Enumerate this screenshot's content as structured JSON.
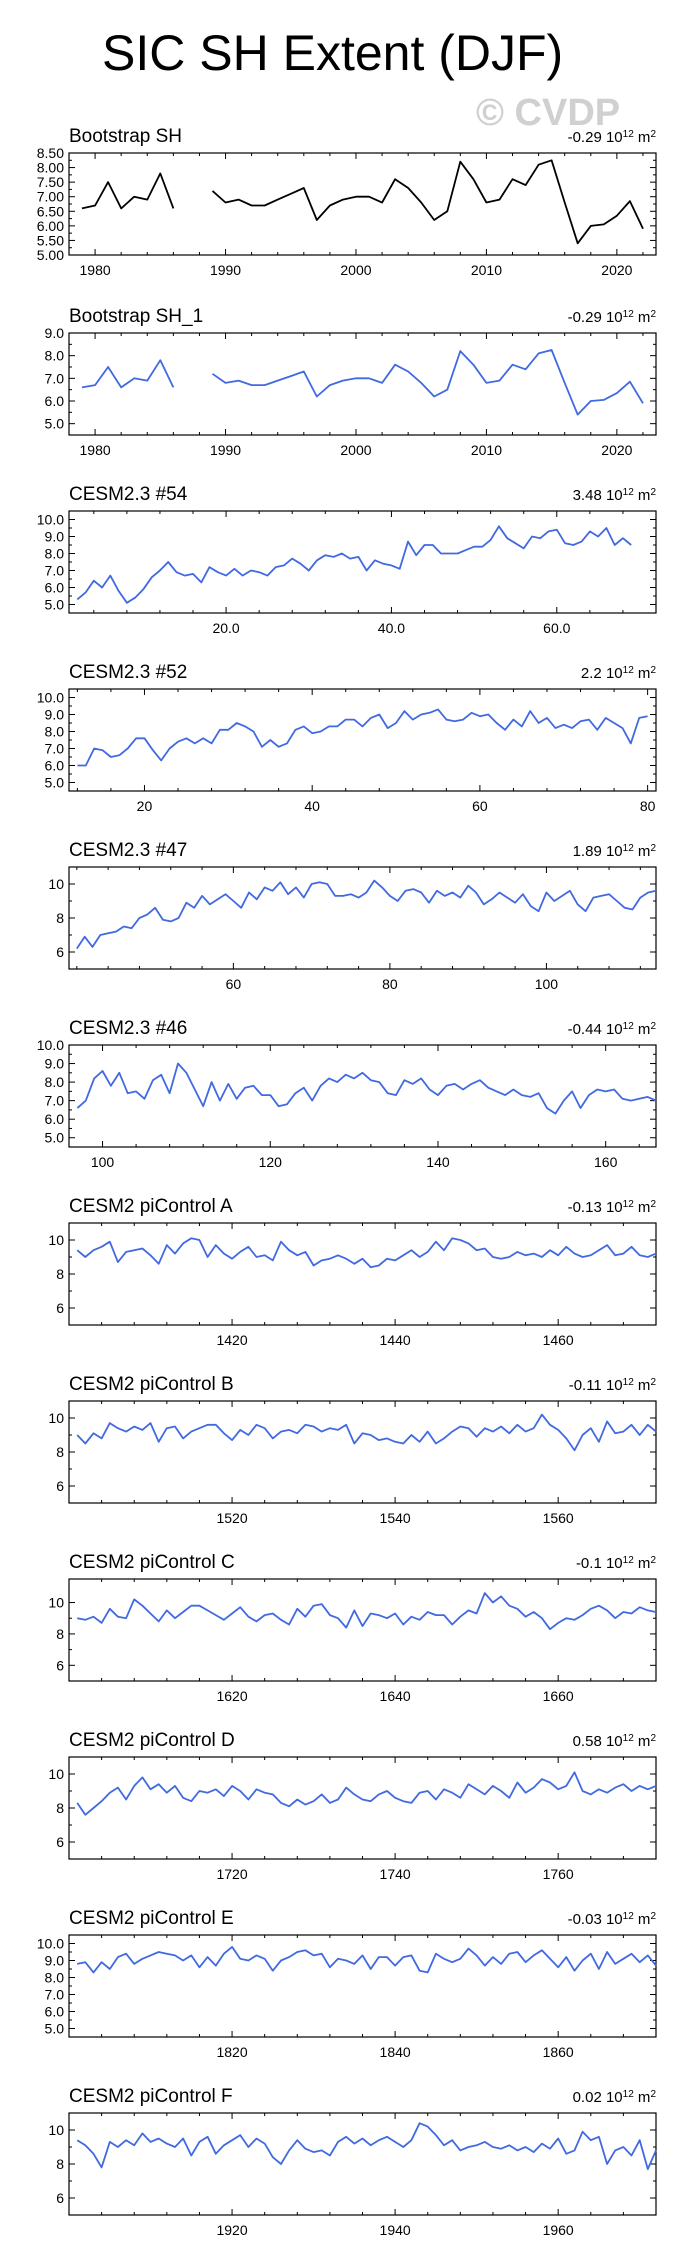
{
  "page": {
    "title": "SIC SH Extent (DJF)",
    "watermark": "© CVDP",
    "trend_unit_base": "10",
    "trend_unit_exp": "12",
    "trend_unit_suffix": "m"
  },
  "colors": {
    "obs_line": "#000000",
    "model_line": "#4169e1",
    "axis": "#000000"
  },
  "chart_data": [
    {
      "type": "line",
      "title": "Bootstrap SH",
      "trend": "-0.29",
      "xlim": [
        1978,
        2023
      ],
      "ylim": [
        5.0,
        8.5
      ],
      "yticks": [
        5.0,
        5.5,
        6.0,
        6.5,
        7.0,
        7.5,
        8.0,
        8.5
      ],
      "yticklabels": [
        "5.00",
        "5.50",
        "6.00",
        "6.50",
        "7.00",
        "7.50",
        "8.00",
        "8.50"
      ],
      "xticks": [
        1980,
        1990,
        2000,
        2010,
        2020
      ],
      "xticklabels": [
        "1980",
        "1990",
        "2000",
        "2010",
        "2020"
      ],
      "line_color": "#000000",
      "x": [
        1979,
        1980,
        1981,
        1982,
        1983,
        1984,
        1985,
        1986,
        1987,
        1988,
        1989,
        1990,
        1991,
        1992,
        1993,
        1994,
        1995,
        1996,
        1997,
        1998,
        1999,
        2000,
        2001,
        2002,
        2003,
        2004,
        2005,
        2006,
        2007,
        2008,
        2009,
        2010,
        2011,
        2012,
        2013,
        2014,
        2015,
        2016,
        2017,
        2018,
        2019,
        2020,
        2021,
        2022
      ],
      "values": [
        6.6,
        6.7,
        7.5,
        6.6,
        7.0,
        6.9,
        7.8,
        6.6,
        null,
        null,
        7.2,
        6.8,
        6.9,
        6.7,
        6.7,
        6.9,
        7.1,
        7.3,
        6.2,
        6.7,
        6.9,
        7.0,
        7.0,
        6.8,
        7.6,
        7.3,
        6.8,
        6.2,
        6.5,
        8.2,
        7.6,
        6.8,
        6.9,
        7.6,
        7.4,
        8.1,
        8.25,
        6.8,
        5.4,
        6.0,
        6.05,
        6.35,
        6.85,
        5.9
      ]
    },
    {
      "type": "line",
      "title": "Bootstrap SH_1",
      "trend": "-0.29",
      "xlim": [
        1978,
        2023
      ],
      "ylim": [
        4.5,
        9.0
      ],
      "yticks": [
        5.0,
        6.0,
        7.0,
        8.0,
        9.0
      ],
      "yticklabels": [
        "5.0",
        "6.0",
        "7.0",
        "8.0",
        "9.0"
      ],
      "xticks": [
        1980,
        1990,
        2000,
        2010,
        2020
      ],
      "xticklabels": [
        "1980",
        "1990",
        "2000",
        "2010",
        "2020"
      ],
      "line_color": "#4169e1",
      "x": [
        1979,
        1980,
        1981,
        1982,
        1983,
        1984,
        1985,
        1986,
        1987,
        1988,
        1989,
        1990,
        1991,
        1992,
        1993,
        1994,
        1995,
        1996,
        1997,
        1998,
        1999,
        2000,
        2001,
        2002,
        2003,
        2004,
        2005,
        2006,
        2007,
        2008,
        2009,
        2010,
        2011,
        2012,
        2013,
        2014,
        2015,
        2016,
        2017,
        2018,
        2019,
        2020,
        2021,
        2022
      ],
      "values": [
        6.6,
        6.7,
        7.5,
        6.6,
        7.0,
        6.9,
        7.8,
        6.6,
        null,
        null,
        7.2,
        6.8,
        6.9,
        6.7,
        6.7,
        6.9,
        7.1,
        7.3,
        6.2,
        6.7,
        6.9,
        7.0,
        7.0,
        6.8,
        7.6,
        7.3,
        6.8,
        6.2,
        6.5,
        8.2,
        7.6,
        6.8,
        6.9,
        7.6,
        7.4,
        8.1,
        8.25,
        6.8,
        5.4,
        6.0,
        6.05,
        6.35,
        6.85,
        5.9
      ]
    },
    {
      "type": "line",
      "title": "CESM2.3 #54",
      "trend": "3.48",
      "xlim": [
        1,
        72
      ],
      "ylim": [
        4.5,
        10.5
      ],
      "yticks": [
        5.0,
        6.0,
        7.0,
        8.0,
        9.0,
        10.0
      ],
      "yticklabels": [
        "5.0",
        "6.0",
        "7.0",
        "8.0",
        "9.0",
        "10.0"
      ],
      "xticks": [
        20,
        40,
        60
      ],
      "xticklabels": [
        "20.0",
        "40.0",
        "60.0"
      ],
      "line_color": "#4169e1",
      "x_start": 2,
      "values": [
        5.3,
        5.7,
        6.4,
        6.0,
        6.7,
        5.8,
        5.1,
        5.4,
        5.9,
        6.6,
        7.0,
        7.5,
        6.9,
        6.7,
        6.8,
        6.3,
        7.2,
        6.9,
        6.7,
        7.1,
        6.7,
        7.0,
        6.9,
        6.7,
        7.2,
        7.3,
        7.7,
        7.4,
        7.0,
        7.6,
        7.9,
        7.8,
        8.0,
        7.7,
        7.8,
        7.0,
        7.6,
        7.4,
        7.3,
        7.1,
        8.7,
        7.9,
        8.5,
        8.5,
        8.0,
        8.0,
        8.0,
        8.2,
        8.4,
        8.4,
        8.8,
        9.6,
        8.9,
        8.6,
        8.3,
        9.0,
        8.9,
        9.3,
        9.4,
        8.6,
        8.5,
        8.7,
        9.3,
        9.0,
        9.5,
        8.5,
        8.9,
        8.5
      ]
    },
    {
      "type": "line",
      "title": "CESM2.3 #52",
      "trend": "2.2",
      "xlim": [
        11,
        81
      ],
      "ylim": [
        4.5,
        10.5
      ],
      "yticks": [
        5.0,
        6.0,
        7.0,
        8.0,
        9.0,
        10.0
      ],
      "yticklabels": [
        "5.0",
        "6.0",
        "7.0",
        "8.0",
        "9.0",
        "10.0"
      ],
      "xticks": [
        20,
        40,
        60,
        80
      ],
      "xticklabels": [
        "20",
        "40",
        "60",
        "80"
      ],
      "line_color": "#4169e1",
      "x_start": 12,
      "values": [
        6.0,
        6.0,
        7.0,
        6.9,
        6.5,
        6.6,
        7.0,
        7.6,
        7.6,
        6.9,
        6.3,
        7.0,
        7.4,
        7.6,
        7.3,
        7.6,
        7.3,
        8.1,
        8.1,
        8.5,
        8.3,
        8.0,
        7.1,
        7.5,
        7.1,
        7.3,
        8.1,
        8.3,
        7.9,
        8.0,
        8.3,
        8.3,
        8.7,
        8.7,
        8.3,
        8.8,
        9.0,
        8.2,
        8.5,
        9.2,
        8.7,
        9.0,
        9.1,
        9.3,
        8.7,
        8.6,
        8.7,
        9.1,
        8.9,
        9.0,
        8.5,
        8.1,
        8.7,
        8.3,
        9.2,
        8.5,
        8.8,
        8.2,
        8.4,
        8.2,
        8.6,
        8.7,
        8.1,
        8.8,
        8.5,
        8.2,
        7.3,
        8.8,
        8.9
      ]
    },
    {
      "type": "line",
      "title": "CESM2.3 #47",
      "trend": "1.89",
      "xlim": [
        39,
        114
      ],
      "ylim": [
        5.0,
        11.0
      ],
      "yticks": [
        6,
        8,
        10
      ],
      "yticklabels": [
        "6",
        "8",
        "10"
      ],
      "xticks": [
        60,
        80,
        100
      ],
      "xticklabels": [
        "60",
        "80",
        "100"
      ],
      "line_color": "#4169e1",
      "x_start": 40,
      "values": [
        6.2,
        6.9,
        6.3,
        7.0,
        7.1,
        7.2,
        7.5,
        7.4,
        8.0,
        8.2,
        8.6,
        7.9,
        7.8,
        8.0,
        8.9,
        8.6,
        9.3,
        8.8,
        9.1,
        9.4,
        9.0,
        8.6,
        9.5,
        9.1,
        9.8,
        9.6,
        10.1,
        9.4,
        9.8,
        9.2,
        10.0,
        10.1,
        10.0,
        9.3,
        9.3,
        9.4,
        9.2,
        9.5,
        10.2,
        9.8,
        9.3,
        9.0,
        9.6,
        9.7,
        9.5,
        8.9,
        9.6,
        9.3,
        9.5,
        9.2,
        9.9,
        9.5,
        8.8,
        9.1,
        9.5,
        9.2,
        8.9,
        9.4,
        8.7,
        8.4,
        9.5,
        9.0,
        9.3,
        9.6,
        8.8,
        8.4,
        9.2,
        9.3,
        9.4,
        9.0,
        8.6,
        8.5,
        9.2,
        9.5,
        9.6
      ]
    },
    {
      "type": "line",
      "title": "CESM2.3 #46",
      "trend": "-0.44",
      "xlim": [
        96,
        166
      ],
      "ylim": [
        4.5,
        10.0
      ],
      "yticks": [
        5.0,
        6.0,
        7.0,
        8.0,
        9.0,
        10.0
      ],
      "yticklabels": [
        "5.0",
        "6.0",
        "7.0",
        "8.0",
        "9.0",
        "10.0"
      ],
      "xticks": [
        100,
        120,
        140,
        160
      ],
      "xticklabels": [
        "100",
        "120",
        "140",
        "160"
      ],
      "line_color": "#4169e1",
      "x_start": 97,
      "values": [
        6.6,
        7.0,
        8.2,
        8.6,
        7.8,
        8.5,
        7.4,
        7.5,
        7.1,
        8.1,
        8.4,
        7.4,
        9.0,
        8.5,
        7.6,
        6.7,
        8.0,
        7.0,
        7.9,
        7.1,
        7.7,
        7.8,
        7.3,
        7.3,
        6.7,
        6.8,
        7.4,
        7.7,
        7.0,
        7.8,
        8.2,
        8.0,
        8.4,
        8.2,
        8.5,
        8.1,
        8.0,
        7.4,
        7.3,
        8.1,
        7.9,
        8.2,
        7.6,
        7.3,
        7.8,
        7.9,
        7.6,
        7.9,
        8.1,
        7.7,
        7.5,
        7.3,
        7.6,
        7.3,
        7.2,
        7.4,
        6.6,
        6.3,
        7.0,
        7.5,
        6.6,
        7.3,
        7.6,
        7.5,
        7.6,
        7.1,
        7.0,
        7.1,
        7.2,
        7.0
      ]
    },
    {
      "type": "line",
      "title": "CESM2 piControl A",
      "trend": "-0.13",
      "xlim": [
        1400,
        1472
      ],
      "ylim": [
        5.0,
        11.0
      ],
      "yticks": [
        6,
        8,
        10
      ],
      "yticklabels": [
        "6",
        "8",
        "10"
      ],
      "xticks": [
        1420,
        1440,
        1460
      ],
      "xticklabels": [
        "1420",
        "1440",
        "1460"
      ],
      "line_color": "#4169e1",
      "x_start": 1401,
      "values": [
        9.4,
        9.0,
        9.4,
        9.6,
        9.9,
        8.7,
        9.3,
        9.4,
        9.5,
        9.1,
        8.6,
        9.7,
        9.2,
        9.8,
        10.1,
        10.0,
        9.0,
        9.7,
        9.2,
        8.9,
        9.3,
        9.6,
        9.0,
        9.1,
        8.8,
        9.9,
        9.4,
        9.1,
        9.3,
        8.5,
        8.8,
        8.9,
        9.1,
        8.9,
        8.6,
        8.9,
        8.4,
        8.5,
        8.9,
        8.8,
        9.1,
        9.4,
        9.0,
        9.3,
        9.9,
        9.4,
        10.1,
        10.0,
        9.8,
        9.4,
        9.5,
        9.0,
        8.9,
        9.0,
        9.3,
        9.1,
        9.2,
        9.0,
        9.4,
        9.1,
        9.6,
        9.2,
        9.0,
        9.1,
        9.4,
        9.7,
        9.1,
        9.2,
        9.6,
        9.1,
        9.0,
        9.2
      ]
    },
    {
      "type": "line",
      "title": "CESM2 piControl B",
      "trend": "-0.11",
      "xlim": [
        1500,
        1572
      ],
      "ylim": [
        5.0,
        11.0
      ],
      "yticks": [
        6,
        8,
        10
      ],
      "yticklabels": [
        "6",
        "8",
        "10"
      ],
      "xticks": [
        1520,
        1540,
        1560
      ],
      "xticklabels": [
        "1520",
        "1540",
        "1560"
      ],
      "line_color": "#4169e1",
      "x_start": 1501,
      "values": [
        9.0,
        8.5,
        9.1,
        8.8,
        9.7,
        9.4,
        9.2,
        9.5,
        9.3,
        9.7,
        8.6,
        9.4,
        9.5,
        8.8,
        9.2,
        9.4,
        9.6,
        9.6,
        9.1,
        8.7,
        9.3,
        9.0,
        9.6,
        9.4,
        8.8,
        9.2,
        9.3,
        9.1,
        9.6,
        9.5,
        9.2,
        9.4,
        9.3,
        9.6,
        8.5,
        9.1,
        9.0,
        8.7,
        8.8,
        8.6,
        8.5,
        9.0,
        8.6,
        9.2,
        8.5,
        8.8,
        9.2,
        9.5,
        9.4,
        8.9,
        9.4,
        9.2,
        9.5,
        9.1,
        9.6,
        9.2,
        9.4,
        10.2,
        9.6,
        9.3,
        8.8,
        8.1,
        9.0,
        9.4,
        8.6,
        9.8,
        9.1,
        9.2,
        9.6,
        9.0,
        9.6,
        9.2
      ]
    },
    {
      "type": "line",
      "title": "CESM2 piControl C",
      "trend": "-0.1",
      "xlim": [
        1600,
        1672
      ],
      "ylim": [
        5.0,
        11.5
      ],
      "yticks": [
        6,
        8,
        10
      ],
      "yticklabels": [
        "6",
        "8",
        "10"
      ],
      "xticks": [
        1620,
        1640,
        1660
      ],
      "xticklabels": [
        "1620",
        "1640",
        "1660"
      ],
      "line_color": "#4169e1",
      "x_start": 1601,
      "values": [
        9.0,
        8.9,
        9.1,
        8.7,
        9.6,
        9.1,
        9.0,
        10.2,
        9.8,
        9.3,
        8.8,
        9.5,
        9.0,
        9.4,
        9.8,
        9.8,
        9.5,
        9.2,
        8.9,
        9.3,
        9.7,
        9.1,
        8.8,
        9.2,
        9.3,
        8.9,
        8.6,
        9.6,
        9.1,
        9.8,
        9.9,
        9.2,
        9.0,
        8.4,
        9.5,
        8.5,
        9.3,
        9.2,
        9.0,
        9.3,
        8.6,
        9.1,
        8.9,
        9.4,
        9.2,
        9.2,
        8.6,
        9.1,
        9.5,
        9.3,
        10.6,
        10.0,
        10.4,
        9.8,
        9.6,
        9.1,
        9.4,
        9.0,
        8.3,
        8.7,
        9.0,
        8.9,
        9.2,
        9.6,
        9.8,
        9.5,
        9.0,
        9.4,
        9.3,
        9.7,
        9.5,
        9.4
      ]
    },
    {
      "type": "line",
      "title": "CESM2 piControl D",
      "trend": "0.58",
      "xlim": [
        1700,
        1772
      ],
      "ylim": [
        5.0,
        11.0
      ],
      "yticks": [
        6,
        8,
        10
      ],
      "yticklabels": [
        "6",
        "8",
        "10"
      ],
      "xticks": [
        1720,
        1740,
        1760
      ],
      "xticklabels": [
        "1720",
        "1740",
        "1760"
      ],
      "line_color": "#4169e1",
      "x_start": 1701,
      "values": [
        8.3,
        7.6,
        8.0,
        8.4,
        8.9,
        9.2,
        8.5,
        9.3,
        9.8,
        9.1,
        9.4,
        8.9,
        9.3,
        8.6,
        8.4,
        9.0,
        8.9,
        9.1,
        8.7,
        9.3,
        9.0,
        8.5,
        9.1,
        8.9,
        8.8,
        8.3,
        8.1,
        8.5,
        8.2,
        8.4,
        8.8,
        8.3,
        8.5,
        9.2,
        8.8,
        8.5,
        8.4,
        8.8,
        9.0,
        8.6,
        8.4,
        8.3,
        8.9,
        9.0,
        8.5,
        9.1,
        8.9,
        8.6,
        9.4,
        9.1,
        8.8,
        9.3,
        9.0,
        8.6,
        9.5,
        8.9,
        9.2,
        9.7,
        9.5,
        9.1,
        9.3,
        10.1,
        9.0,
        8.8,
        9.1,
        8.9,
        9.2,
        9.4,
        9.0,
        9.3,
        9.1,
        9.3
      ]
    },
    {
      "type": "line",
      "title": "CESM2 piControl E",
      "trend": "-0.03",
      "xlim": [
        1800,
        1872
      ],
      "ylim": [
        4.5,
        10.5
      ],
      "yticks": [
        5.0,
        6.0,
        7.0,
        8.0,
        9.0,
        10.0
      ],
      "yticklabels": [
        "5.0",
        "6.0",
        "7.0",
        "8.0",
        "9.0",
        "10.0"
      ],
      "xticks": [
        1820,
        1840,
        1860
      ],
      "xticklabels": [
        "1820",
        "1840",
        "1860"
      ],
      "line_color": "#4169e1",
      "x_start": 1801,
      "values": [
        8.8,
        8.9,
        8.3,
        8.9,
        8.5,
        9.2,
        9.4,
        8.8,
        9.1,
        9.3,
        9.5,
        9.4,
        9.3,
        9.0,
        9.3,
        8.6,
        9.2,
        8.7,
        9.4,
        9.8,
        9.1,
        9.0,
        9.3,
        9.1,
        8.4,
        9.0,
        9.2,
        9.5,
        9.6,
        9.3,
        9.4,
        8.6,
        9.1,
        9.0,
        8.8,
        9.3,
        8.5,
        9.2,
        9.2,
        8.7,
        9.2,
        9.3,
        8.4,
        8.3,
        9.4,
        9.1,
        8.9,
        9.1,
        9.7,
        9.3,
        8.7,
        9.2,
        8.8,
        9.4,
        9.5,
        8.9,
        9.3,
        9.6,
        9.1,
        8.6,
        9.2,
        8.4,
        9.0,
        9.4,
        8.5,
        9.5,
        8.8,
        9.1,
        9.4,
        8.9,
        9.3,
        8.7
      ]
    },
    {
      "type": "line",
      "title": "CESM2 piControl F",
      "trend": "0.02",
      "xlim": [
        1900,
        1972
      ],
      "ylim": [
        5.0,
        11.0
      ],
      "yticks": [
        6,
        8,
        10
      ],
      "yticklabels": [
        "6",
        "8",
        "10"
      ],
      "xticks": [
        1920,
        1940,
        1960
      ],
      "xticklabels": [
        "1920",
        "1940",
        "1960"
      ],
      "line_color": "#4169e1",
      "x_start": 1901,
      "values": [
        9.4,
        9.1,
        8.6,
        7.8,
        9.3,
        9.0,
        9.4,
        9.1,
        9.8,
        9.3,
        9.5,
        9.2,
        9.0,
        9.5,
        8.5,
        9.3,
        9.6,
        8.6,
        9.1,
        9.4,
        9.7,
        9.0,
        9.5,
        9.2,
        8.4,
        8.0,
        8.8,
        9.4,
        8.9,
        8.7,
        8.8,
        8.5,
        9.3,
        9.6,
        9.2,
        9.5,
        9.1,
        9.4,
        9.6,
        9.3,
        9.0,
        9.4,
        10.4,
        10.2,
        9.7,
        9.1,
        9.4,
        8.8,
        9.0,
        9.1,
        9.3,
        9.0,
        8.9,
        9.1,
        8.8,
        9.0,
        8.7,
        9.2,
        8.9,
        9.5,
        8.6,
        8.8,
        9.9,
        9.4,
        9.6,
        8.0,
        8.8,
        9.0,
        8.5,
        9.4,
        7.7,
        8.8
      ]
    }
  ]
}
